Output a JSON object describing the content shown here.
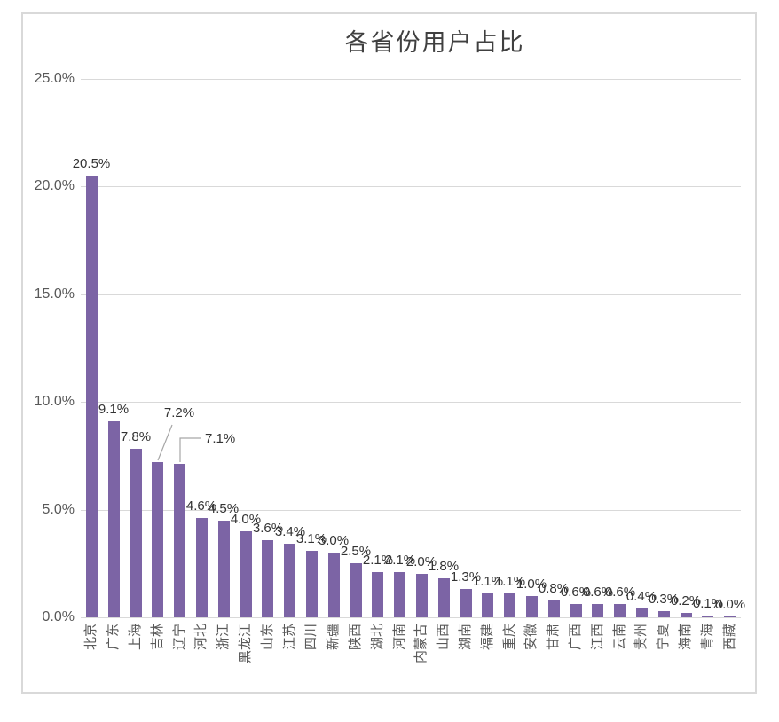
{
  "chart_data": {
    "type": "bar",
    "title": "各省份用户占比",
    "categories": [
      "北京",
      "广东",
      "上海",
      "吉林",
      "辽宁",
      "河北",
      "浙江",
      "黑龙江",
      "山东",
      "江苏",
      "四川",
      "新疆",
      "陕西",
      "湖北",
      "河南",
      "内蒙古",
      "山西",
      "湖南",
      "福建",
      "重庆",
      "安徽",
      "甘肃",
      "广西",
      "江西",
      "云南",
      "贵州",
      "宁夏",
      "海南",
      "青海",
      "西藏"
    ],
    "values": [
      20.5,
      9.1,
      7.8,
      7.2,
      7.1,
      4.6,
      4.5,
      4.0,
      3.6,
      3.4,
      3.1,
      3.0,
      2.5,
      2.1,
      2.1,
      2.0,
      1.8,
      1.3,
      1.1,
      1.1,
      1.0,
      0.8,
      0.6,
      0.6,
      0.6,
      0.4,
      0.3,
      0.2,
      0.1,
      0.0
    ],
    "data_label_suffix": "%",
    "xlabel": "",
    "ylabel": "",
    "ylim": [
      0,
      25
    ],
    "y_axis_ticks": [
      "0.0%",
      "5.0%",
      "10.0%",
      "15.0%",
      "20.0%",
      "25.0%"
    ],
    "grid": true,
    "legend": "none",
    "callout_labels": [
      {
        "category": "吉林",
        "index": 3,
        "label": "7.2%"
      },
      {
        "category": "辽宁",
        "index": 4,
        "label": "7.1%"
      }
    ],
    "colors": {
      "bar": "#7C64A5",
      "gridline": "#D9D9D9",
      "frame_border": "#D9D9D9",
      "axis_text": "#595959",
      "data_label_text": "#333333",
      "title_text": "#404040",
      "leader_line": "#A6A6A6",
      "background": "#FFFFFF"
    }
  }
}
